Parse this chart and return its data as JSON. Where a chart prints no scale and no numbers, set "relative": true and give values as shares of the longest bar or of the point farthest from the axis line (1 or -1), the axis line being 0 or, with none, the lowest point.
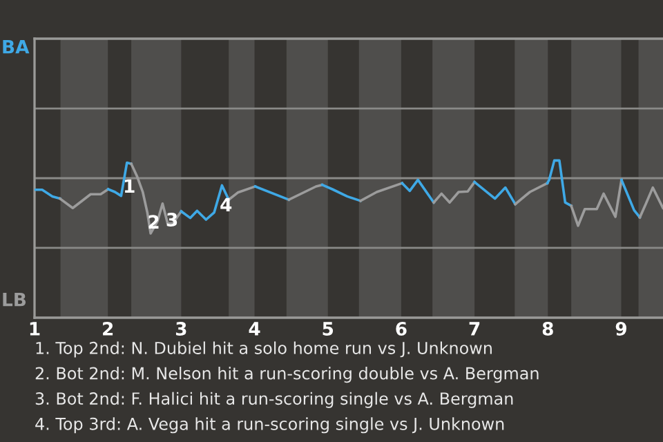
{
  "chart_data": {
    "type": "line",
    "relative": true,
    "ref_lines": [
      {
        "axis": "y",
        "value": 1.26,
        "color": "#8a8a88"
      },
      {
        "axis": "y",
        "value": 0,
        "color": "#8a8a88"
      },
      {
        "axis": "y",
        "value": -1.26,
        "color": "#8a8a88"
      }
    ],
    "xlim": [
      1,
      9.57
    ],
    "xticks": [
      1,
      2,
      3,
      4,
      5,
      6,
      7,
      8,
      9
    ],
    "tick_labels": "x",
    "bands": [
      {
        "axis": "x",
        "from": 1.354,
        "to": 2,
        "color": "#4f4e4c"
      },
      {
        "axis": "x",
        "from": 2.319,
        "to": 3,
        "color": "#4f4e4c"
      },
      {
        "axis": "x",
        "from": 3.648,
        "to": 4,
        "color": "#4f4e4c"
      },
      {
        "axis": "x",
        "from": 4.436,
        "to": 5,
        "color": "#4f4e4c"
      },
      {
        "axis": "x",
        "from": 5.424,
        "to": 6,
        "color": "#4f4e4c"
      },
      {
        "axis": "x",
        "from": 6.426,
        "to": 7,
        "color": "#4f4e4c"
      },
      {
        "axis": "x",
        "from": 7.548,
        "to": 8,
        "color": "#4f4e4c"
      },
      {
        "axis": "x",
        "from": 8.319,
        "to": 9,
        "color": "#4f4e4c"
      },
      {
        "axis": "x",
        "from": 9.236,
        "to": 9.57,
        "color": "#4f4e4c"
      }
    ],
    "series": [
      {
        "color": "#3fa9e6",
        "x": [
          1.0,
          1.104,
          1.244,
          1.348
        ],
        "values": [
          -0.21,
          -0.21,
          -0.33,
          -0.37
        ]
      },
      {
        "color": "#9c9c9c",
        "x": [
          1.348,
          1.521,
          1.765,
          1.902,
          2.004
        ],
        "values": [
          -0.37,
          -0.54,
          -0.29,
          -0.29,
          -0.2
        ]
      },
      {
        "color": "#3fa9e6",
        "x": [
          2.004,
          2.097,
          2.181,
          2.26,
          2.319
        ],
        "values": [
          -0.2,
          -0.25,
          -0.32,
          0.28,
          0.26
        ]
      },
      {
        "color": "#9c9c9c",
        "x": [
          2.319,
          2.399,
          2.476,
          2.538,
          2.583,
          2.676,
          2.746,
          2.815,
          2.885,
          3.0
        ],
        "values": [
          0.26,
          0.03,
          -0.25,
          -0.62,
          -1,
          -0.78,
          -0.46,
          -0.82,
          -0.82,
          -0.6
        ]
      },
      {
        "color": "#3fa9e6",
        "x": [
          3.0,
          3.124,
          3.217,
          3.339,
          3.45,
          3.556,
          3.648
        ],
        "values": [
          -0.6,
          -0.72,
          -0.59,
          -0.75,
          -0.62,
          -0.13,
          -0.39
        ]
      },
      {
        "color": "#9c9c9c",
        "x": [
          3.648,
          3.772,
          4.008
        ],
        "values": [
          -0.39,
          -0.26,
          -0.15
        ]
      },
      {
        "color": "#3fa9e6",
        "x": [
          4.008,
          4.469
        ],
        "values": [
          -0.15,
          -0.39
        ]
      },
      {
        "color": "#9c9c9c",
        "x": [
          4.469,
          4.838,
          4.923
        ],
        "values": [
          -0.39,
          -0.15,
          -0.12
        ]
      },
      {
        "color": "#3fa9e6",
        "x": [
          4.923,
          5.061,
          5.264,
          5.445
        ],
        "values": [
          -0.12,
          -0.2,
          -0.33,
          -0.41
        ]
      },
      {
        "color": "#9c9c9c",
        "x": [
          5.445,
          5.667,
          6.013
        ],
        "values": [
          -0.41,
          -0.25,
          -0.09
        ]
      },
      {
        "color": "#3fa9e6",
        "x": [
          6.013,
          6.117,
          6.228,
          6.444
        ],
        "values": [
          -0.09,
          -0.23,
          -0.03,
          -0.44
        ]
      },
      {
        "color": "#9c9c9c",
        "x": [
          6.444,
          6.55,
          6.661,
          6.783,
          6.907,
          7.0
        ],
        "values": [
          -0.44,
          -0.28,
          -0.44,
          -0.25,
          -0.24,
          -0.07
        ]
      },
      {
        "color": "#3fa9e6",
        "x": [
          7.0,
          7.279,
          7.421,
          7.555
        ],
        "values": [
          -0.07,
          -0.37,
          -0.17,
          -0.47
        ]
      },
      {
        "color": "#9c9c9c",
        "x": [
          7.555,
          7.755,
          7.993
        ],
        "values": [
          -0.47,
          -0.25,
          -0.09
        ]
      },
      {
        "color": "#3fa9e6",
        "x": [
          7.993,
          8.018,
          8.088,
          8.157,
          8.236,
          8.319
        ],
        "values": [
          -0.09,
          -0.03,
          0.32,
          0.32,
          -0.44,
          -0.5
        ]
      },
      {
        "color": "#9c9c9c",
        "x": [
          8.319,
          8.412,
          8.504,
          8.667,
          8.76,
          8.921,
          9.004
        ],
        "values": [
          -0.5,
          -0.86,
          -0.56,
          -0.56,
          -0.28,
          -0.7,
          -0.03
        ]
      },
      {
        "color": "#3fa9e6",
        "x": [
          9.004,
          9.176,
          9.254
        ],
        "values": [
          -0.03,
          -0.58,
          -0.71
        ]
      },
      {
        "color": "#9c9c9c",
        "x": [
          9.254,
          9.338,
          9.431,
          9.569
        ],
        "values": [
          -0.71,
          -0.46,
          -0.17,
          -0.54
        ]
      }
    ],
    "annotations": [
      {
        "text": "1",
        "x": 2.292,
        "y": -0.17
      },
      {
        "text": "2",
        "x": 2.625,
        "y": -0.82
      },
      {
        "text": "3",
        "x": 2.875,
        "y": -0.78
      },
      {
        "text": "4",
        "x": 3.611,
        "y": -0.51
      },
      "BA",
      "LB",
      "1. Top 2nd: N. Dubiel hit a solo home run vs J. Unknown",
      "2. Bot 2nd: M. Nelson hit a run-scoring double vs A. Bergman",
      "3. Bot 2nd: F. Halici hit a run-scoring single vs A. Bergman",
      "4. Top 3rd: A. Vega hit a run-scoring single vs J. Unknown"
    ]
  }
}
